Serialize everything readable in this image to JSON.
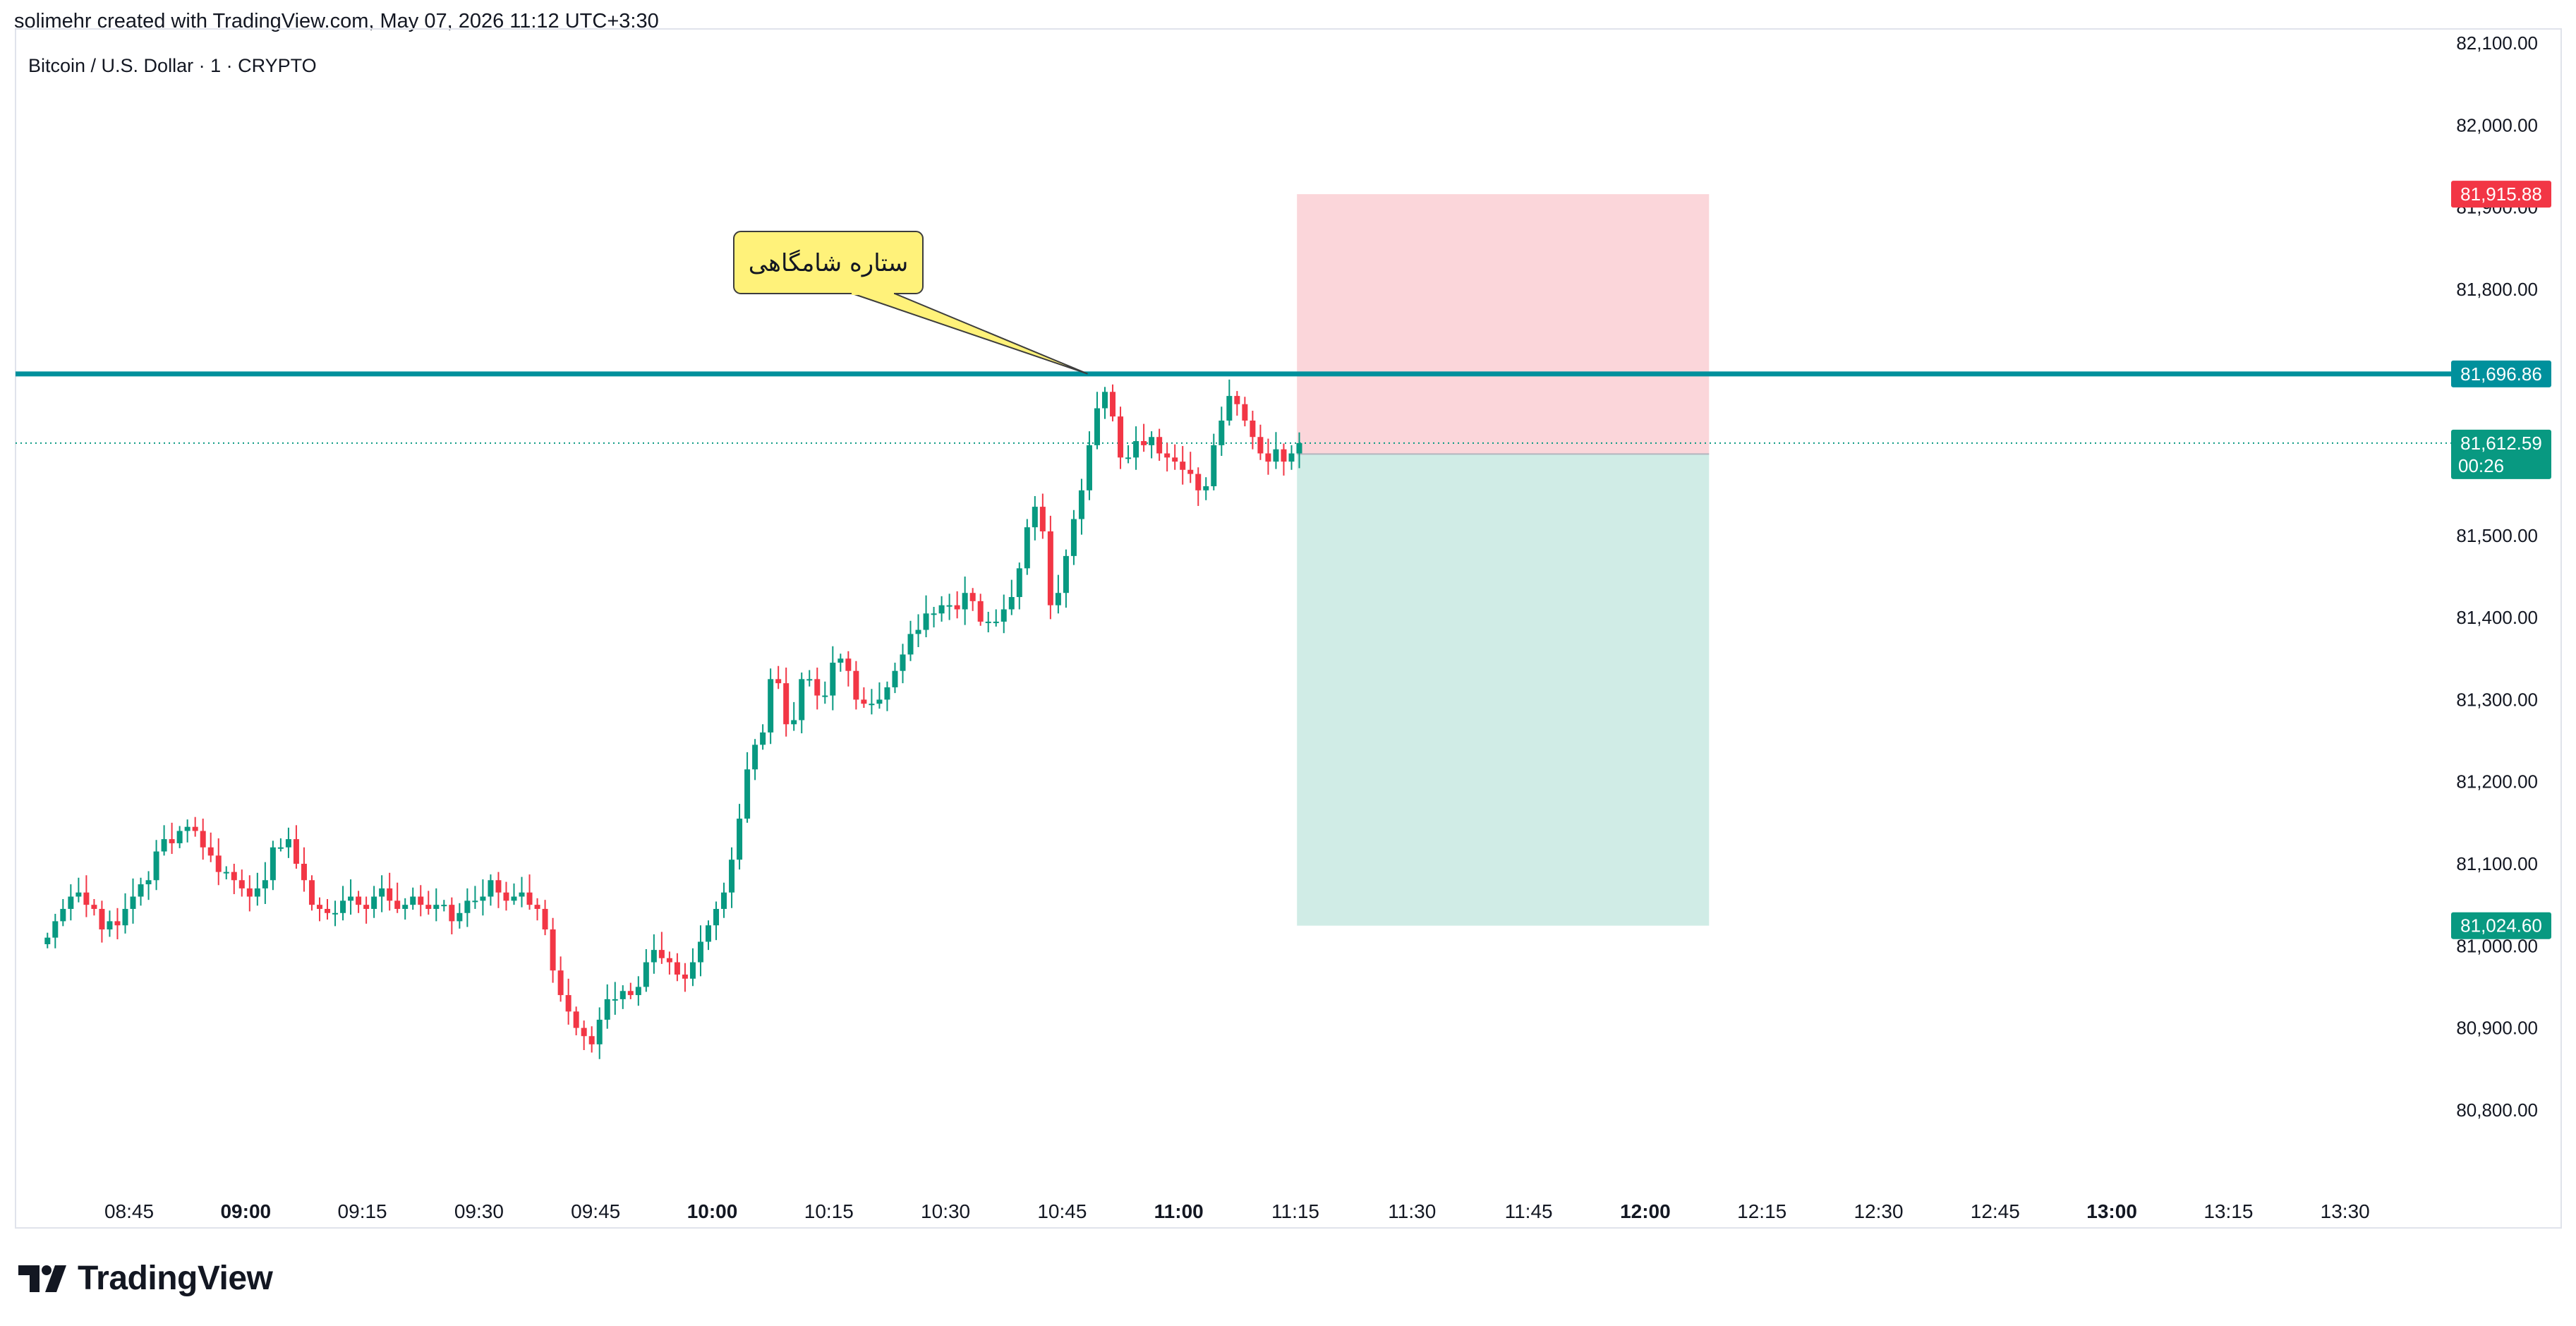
{
  "header": {
    "created_line": "solimehr created with TradingView.com, May 07, 2026 11:12 UTC+3:30"
  },
  "symbol": {
    "title": "Bitcoin / U.S. Dollar · 1 · CRYPTO"
  },
  "footer": {
    "brand": "TradingView",
    "logo_icon": "tradingview-logo-icon"
  },
  "colors": {
    "up": "#089981",
    "down": "#f23645",
    "level_line": "#00909c",
    "stop_zone": "#fbd6da",
    "target_zone": "#d0ece6",
    "callout_fill": "#fff27a",
    "callout_border": "#3d3d3d",
    "last_price_badge": "#089981",
    "entry_badge": "#787b86"
  },
  "chart_data": {
    "type": "candlestick",
    "symbol": "Bitcoin / U.S. Dollar · 1 · CRYPTO",
    "interval_minutes": 1,
    "ylim": [
      80740,
      82115
    ],
    "y_ticks": [
      {
        "value": 82100,
        "label": "82,100.00"
      },
      {
        "value": 82000,
        "label": "82,000.00"
      },
      {
        "value": 81900,
        "label": "81,900.00"
      },
      {
        "value": 81800,
        "label": "81,800.00"
      },
      {
        "value": 81500,
        "label": "81,500.00"
      },
      {
        "value": 81400,
        "label": "81,400.00"
      },
      {
        "value": 81300,
        "label": "81,300.00"
      },
      {
        "value": 81200,
        "label": "81,200.00"
      },
      {
        "value": 81100,
        "label": "81,100.00"
      },
      {
        "value": 81000,
        "label": "81,000.00"
      },
      {
        "value": 80900,
        "label": "80,900.00"
      },
      {
        "value": 80800,
        "label": "80,800.00"
      }
    ],
    "x_ticks": [
      {
        "minute": 525,
        "label": "08:45",
        "bold": false
      },
      {
        "minute": 540,
        "label": "09:00",
        "bold": true
      },
      {
        "minute": 555,
        "label": "09:15",
        "bold": false
      },
      {
        "minute": 570,
        "label": "09:30",
        "bold": false
      },
      {
        "minute": 585,
        "label": "09:45",
        "bold": false
      },
      {
        "minute": 600,
        "label": "10:00",
        "bold": true
      },
      {
        "minute": 615,
        "label": "10:15",
        "bold": false
      },
      {
        "minute": 630,
        "label": "10:30",
        "bold": false
      },
      {
        "minute": 645,
        "label": "10:45",
        "bold": false
      },
      {
        "minute": 660,
        "label": "11:00",
        "bold": true
      },
      {
        "minute": 675,
        "label": "11:15",
        "bold": false
      },
      {
        "minute": 690,
        "label": "11:30",
        "bold": false
      },
      {
        "minute": 705,
        "label": "11:45",
        "bold": false
      },
      {
        "minute": 720,
        "label": "12:00",
        "bold": true
      },
      {
        "minute": 735,
        "label": "12:15",
        "bold": false
      },
      {
        "minute": 750,
        "label": "12:30",
        "bold": false
      },
      {
        "minute": 765,
        "label": "12:45",
        "bold": false
      },
      {
        "minute": 780,
        "label": "13:00",
        "bold": true
      },
      {
        "minute": 795,
        "label": "13:15",
        "bold": false
      },
      {
        "minute": 810,
        "label": "13:30",
        "bold": false
      }
    ],
    "candle_closes": [
      81010,
      81030,
      81045,
      81060,
      81065,
      81050,
      81045,
      81020,
      81030,
      81025,
      81045,
      81060,
      81075,
      81080,
      81115,
      81130,
      81125,
      81140,
      81145,
      81140,
      81120,
      81110,
      81090,
      81090,
      81080,
      81070,
      81060,
      81070,
      81080,
      81120,
      81120,
      81130,
      81100,
      81080,
      81050,
      81045,
      81040,
      81040,
      81055,
      81060,
      81050,
      81045,
      81060,
      81070,
      81055,
      81045,
      81050,
      81060,
      81050,
      81045,
      81050,
      81050,
      81030,
      81040,
      81055,
      81055,
      81060,
      81080,
      81065,
      81055,
      81060,
      81065,
      81050,
      81045,
      81020,
      80970,
      80940,
      80920,
      80900,
      80890,
      80880,
      80910,
      80935,
      80935,
      80945,
      80940,
      80950,
      80980,
      80995,
      80985,
      80980,
      80965,
      80960,
      80980,
      81005,
      81025,
      81045,
      81065,
      81105,
      81155,
      81215,
      81245,
      81260,
      81325,
      81320,
      81270,
      81275,
      81325,
      81325,
      81305,
      81305,
      81345,
      81350,
      81335,
      81300,
      81295,
      81295,
      81300,
      81315,
      81335,
      81355,
      81380,
      81385,
      81405,
      81405,
      81415,
      81415,
      81410,
      81430,
      81420,
      81395,
      81395,
      81395,
      81410,
      81425,
      81460,
      81510,
      81535,
      81505,
      81415,
      81430,
      81475,
      81520,
      81555,
      81610,
      81655,
      81675,
      81645,
      81595,
      81595,
      81615,
      81610,
      81620,
      81600,
      81595,
      81590,
      81580,
      81575,
      81555,
      81560,
      81610,
      81640,
      81670,
      81660,
      81640,
      81620,
      81600,
      81590,
      81605,
      81590,
      81600,
      81612.59
    ],
    "key_levels": [
      {
        "price": 81696.86,
        "label": "81,696.86",
        "role": "horizontal-line"
      },
      {
        "price": 81915.88,
        "label": "81,915.88",
        "role": "stop-loss"
      },
      {
        "price": 81612.59,
        "label": "81,612.59",
        "role": "last-price",
        "countdown": "00:26"
      },
      {
        "price": 81599.22,
        "label": "81,599.22",
        "role": "entry"
      },
      {
        "price": 81024.6,
        "label": "81,024.60",
        "role": "take-profit"
      }
    ],
    "short_position": {
      "entry": 81599.22,
      "stop": 81915.88,
      "target": 81024.6,
      "start_minute": 675.2,
      "end_minute": 728.2
    },
    "annotations": [
      {
        "text": "ستاره شامگاهی",
        "anchor_minute": 648,
        "anchor_price": 81697
      }
    ]
  }
}
